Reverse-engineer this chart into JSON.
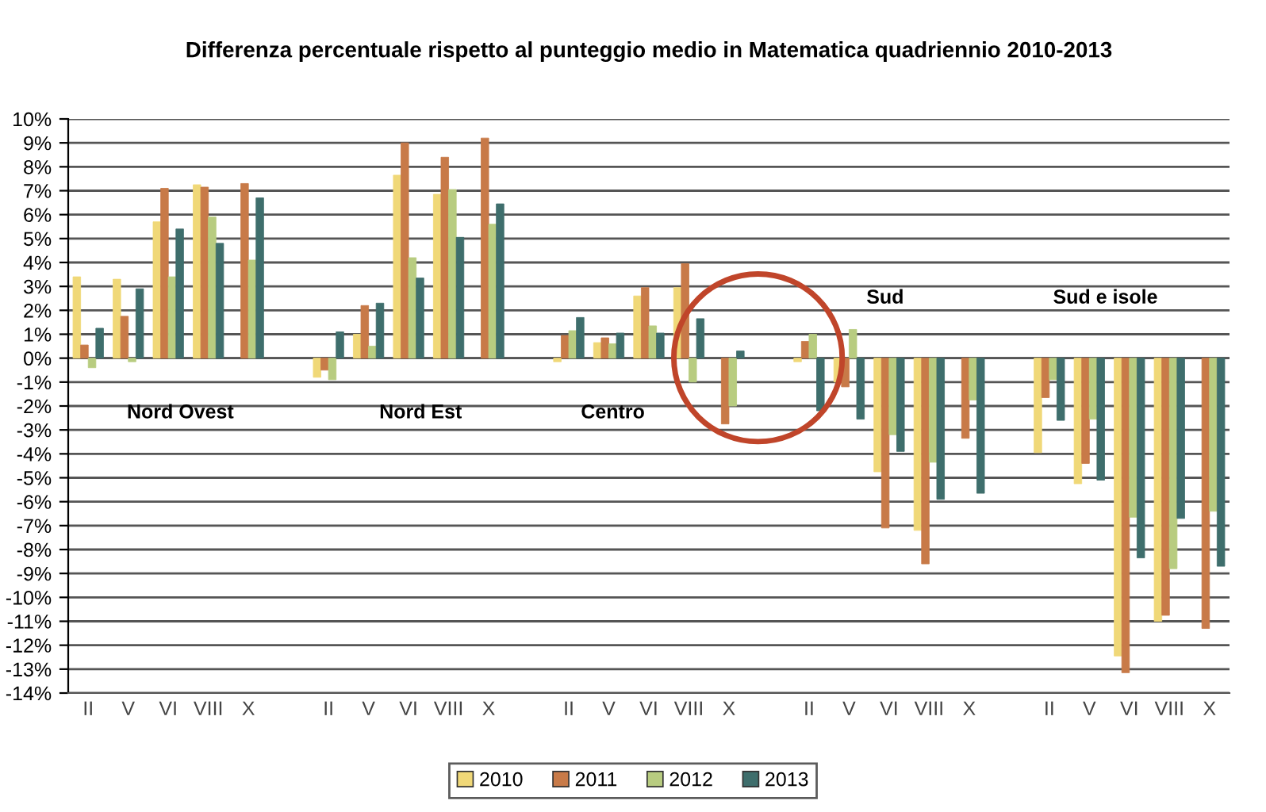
{
  "chart_data": {
    "type": "bar",
    "title": "Differenza percentuale rispetto al punteggio medio in Matematica quadriennio 2010-2013",
    "categories": [
      "II",
      "V",
      "VI",
      "VIII",
      "X",
      null,
      "II",
      "V",
      "VI",
      "VIII",
      "X",
      null,
      "II",
      "V",
      "VI",
      "VIII",
      "X",
      null,
      "II",
      "V",
      "VI",
      "VIII",
      "X",
      null,
      "II",
      "V",
      "VI",
      "VIII",
      "X"
    ],
    "series": [
      {
        "name": "2010",
        "color": "#f0d878",
        "values": [
          3.4,
          3.3,
          5.7,
          7.25,
          null,
          null,
          -0.8,
          1.0,
          7.65,
          6.85,
          null,
          null,
          -0.15,
          0.65,
          2.6,
          2.95,
          null,
          null,
          -0.15,
          -1.0,
          -4.75,
          -7.2,
          null,
          null,
          -3.95,
          -5.25,
          -12.45,
          -11.0,
          null
        ]
      },
      {
        "name": "2011",
        "color": "#c87a48",
        "values": [
          0.55,
          1.75,
          7.1,
          7.15,
          7.3,
          null,
          -0.5,
          2.2,
          9.0,
          8.4,
          9.2,
          null,
          0.95,
          0.85,
          2.95,
          3.95,
          -2.75,
          null,
          0.7,
          -1.2,
          -7.1,
          -8.6,
          -3.35,
          null,
          -1.65,
          -4.4,
          -13.15,
          -10.75,
          -11.3
        ]
      },
      {
        "name": "2012",
        "color": "#b8cc80",
        "values": [
          -0.4,
          -0.15,
          3.4,
          5.9,
          4.1,
          null,
          -0.9,
          0.5,
          4.2,
          7.05,
          5.6,
          null,
          1.15,
          0.6,
          1.35,
          -1.0,
          -2.0,
          null,
          1.0,
          1.2,
          -3.2,
          -4.35,
          -1.75,
          null,
          -0.9,
          -2.55,
          -6.65,
          -8.8,
          -6.4
        ]
      },
      {
        "name": "2013",
        "color": "#3e6e6c",
        "values": [
          1.25,
          2.9,
          5.4,
          4.8,
          6.7,
          null,
          1.1,
          2.3,
          3.35,
          5.05,
          6.45,
          null,
          1.7,
          1.05,
          1.05,
          1.65,
          0.3,
          null,
          -2.2,
          -2.55,
          -3.9,
          -5.9,
          -5.65,
          null,
          -2.6,
          -5.1,
          -8.35,
          -6.7,
          -8.7
        ]
      }
    ],
    "ylim": [
      -14,
      10
    ],
    "yticks": [
      {
        "value": -14,
        "label": "-14%"
      },
      {
        "value": -13,
        "label": "-13%"
      },
      {
        "value": -12,
        "label": "-12%"
      },
      {
        "value": -11,
        "label": "-11%"
      },
      {
        "value": -10,
        "label": "-10%"
      },
      {
        "value": -9,
        "label": "-9%"
      },
      {
        "value": -8,
        "label": "-8%"
      },
      {
        "value": -7,
        "label": "-7%"
      },
      {
        "value": -6,
        "label": "-6%"
      },
      {
        "value": -5,
        "label": "-5%"
      },
      {
        "value": -4,
        "label": "-4%"
      },
      {
        "value": -3,
        "label": "-3%"
      },
      {
        "value": -2,
        "label": "-2%"
      },
      {
        "value": -1,
        "label": "-1%"
      },
      {
        "value": 0,
        "label": "0%"
      },
      {
        "value": 1,
        "label": "1%"
      },
      {
        "value": 2,
        "label": "2%"
      },
      {
        "value": 3,
        "label": "3%"
      },
      {
        "value": 4,
        "label": "4%"
      },
      {
        "value": 5,
        "label": "5%"
      },
      {
        "value": 6,
        "label": "6%"
      },
      {
        "value": 7,
        "label": "7%"
      },
      {
        "value": 8,
        "label": "8%"
      },
      {
        "value": 9,
        "label": "9%"
      },
      {
        "value": 10,
        "label": "10%"
      }
    ],
    "annotations": [
      "Nord Ovest",
      "Nord Est",
      "Centro",
      "Sud",
      "Sud e isole"
    ],
    "grid": "y",
    "legend": "bottom"
  }
}
